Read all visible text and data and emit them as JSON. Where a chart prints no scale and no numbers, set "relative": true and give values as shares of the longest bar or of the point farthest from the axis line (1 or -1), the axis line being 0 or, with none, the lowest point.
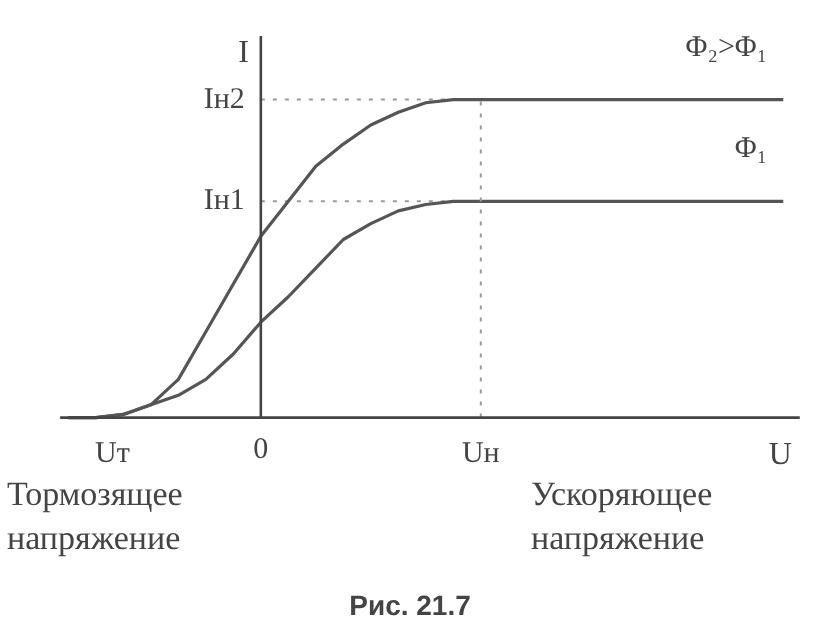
{
  "chart_data": {
    "type": "line",
    "xlabel": "U",
    "ylabel": "I",
    "relative": true,
    "annotations": [
      "Тормозящее напряжение",
      "Ускоряющее напряжение",
      "Рис. 21.7",
      "Uт",
      "0",
      "Uн"
    ],
    "categories": [
      null,
      null,
      null,
      null,
      null,
      null,
      null,
      null,
      null,
      null,
      null,
      null,
      null,
      null,
      null,
      null,
      null,
      null,
      null,
      null,
      null,
      null,
      null,
      null,
      null,
      null,
      null
    ],
    "grid": false,
    "line_style": "solid",
    "ref_lines": [
      {
        "axis": "y",
        "value": 1,
        "label": "Iн2",
        "line_style": "dotted",
        "color": "#999999"
      },
      {
        "axis": "y",
        "value": 0.68,
        "label": "Iн1",
        "line_style": "dotted",
        "color": "#999999"
      }
    ],
    "series": [
      {
        "name": "Φ₂>Φ₁",
        "color": "#555555",
        "values": [
          0,
          0,
          0.01,
          0.04,
          0.12,
          0.27,
          0.42,
          0.57,
          0.68,
          0.79,
          0.86,
          0.92,
          0.96,
          0.99,
          1,
          1,
          1,
          1,
          1,
          1,
          1,
          1,
          1,
          1,
          1,
          1,
          1
        ]
      },
      {
        "name": "Φ₁",
        "color": "#555555",
        "values": [
          0,
          0,
          0.01,
          0.04,
          0.07,
          0.12,
          0.2,
          0.3,
          0.38,
          0.47,
          0.56,
          0.61,
          0.65,
          0.67,
          0.68,
          0.68,
          0.68,
          0.68,
          0.68,
          0.68,
          0.68,
          0.68,
          0.68,
          0.68,
          0.68,
          0.68,
          0.68
        ]
      }
    ]
  }
}
